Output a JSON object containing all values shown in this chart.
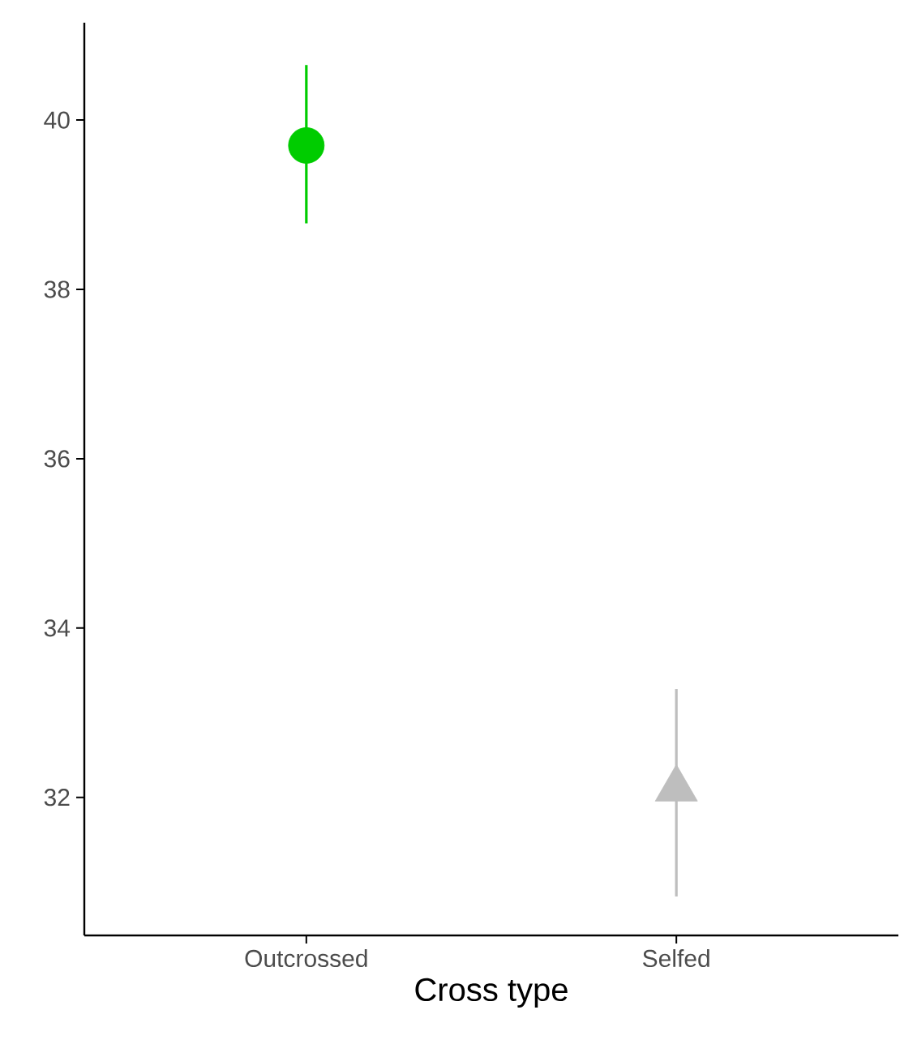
{
  "chart_data": {
    "type": "scatter",
    "categories": [
      "Outcrossed",
      "Selfed"
    ],
    "xlabel": "Cross type",
    "ylim": [
      30.37,
      41.15
    ],
    "yticks": [
      32,
      34,
      36,
      38,
      40
    ],
    "grid": false,
    "series": [
      {
        "color": "#00cc00",
        "marker": "circle",
        "values": [
          39.7,
          null
        ],
        "errors": [
          [
            38.78,
            40.65
          ],
          null
        ]
      },
      {
        "color": "#bebebe",
        "marker": "triangle",
        "values": [
          null,
          32.1
        ],
        "errors": [
          null,
          [
            30.83,
            33.28
          ]
        ]
      }
    ]
  }
}
